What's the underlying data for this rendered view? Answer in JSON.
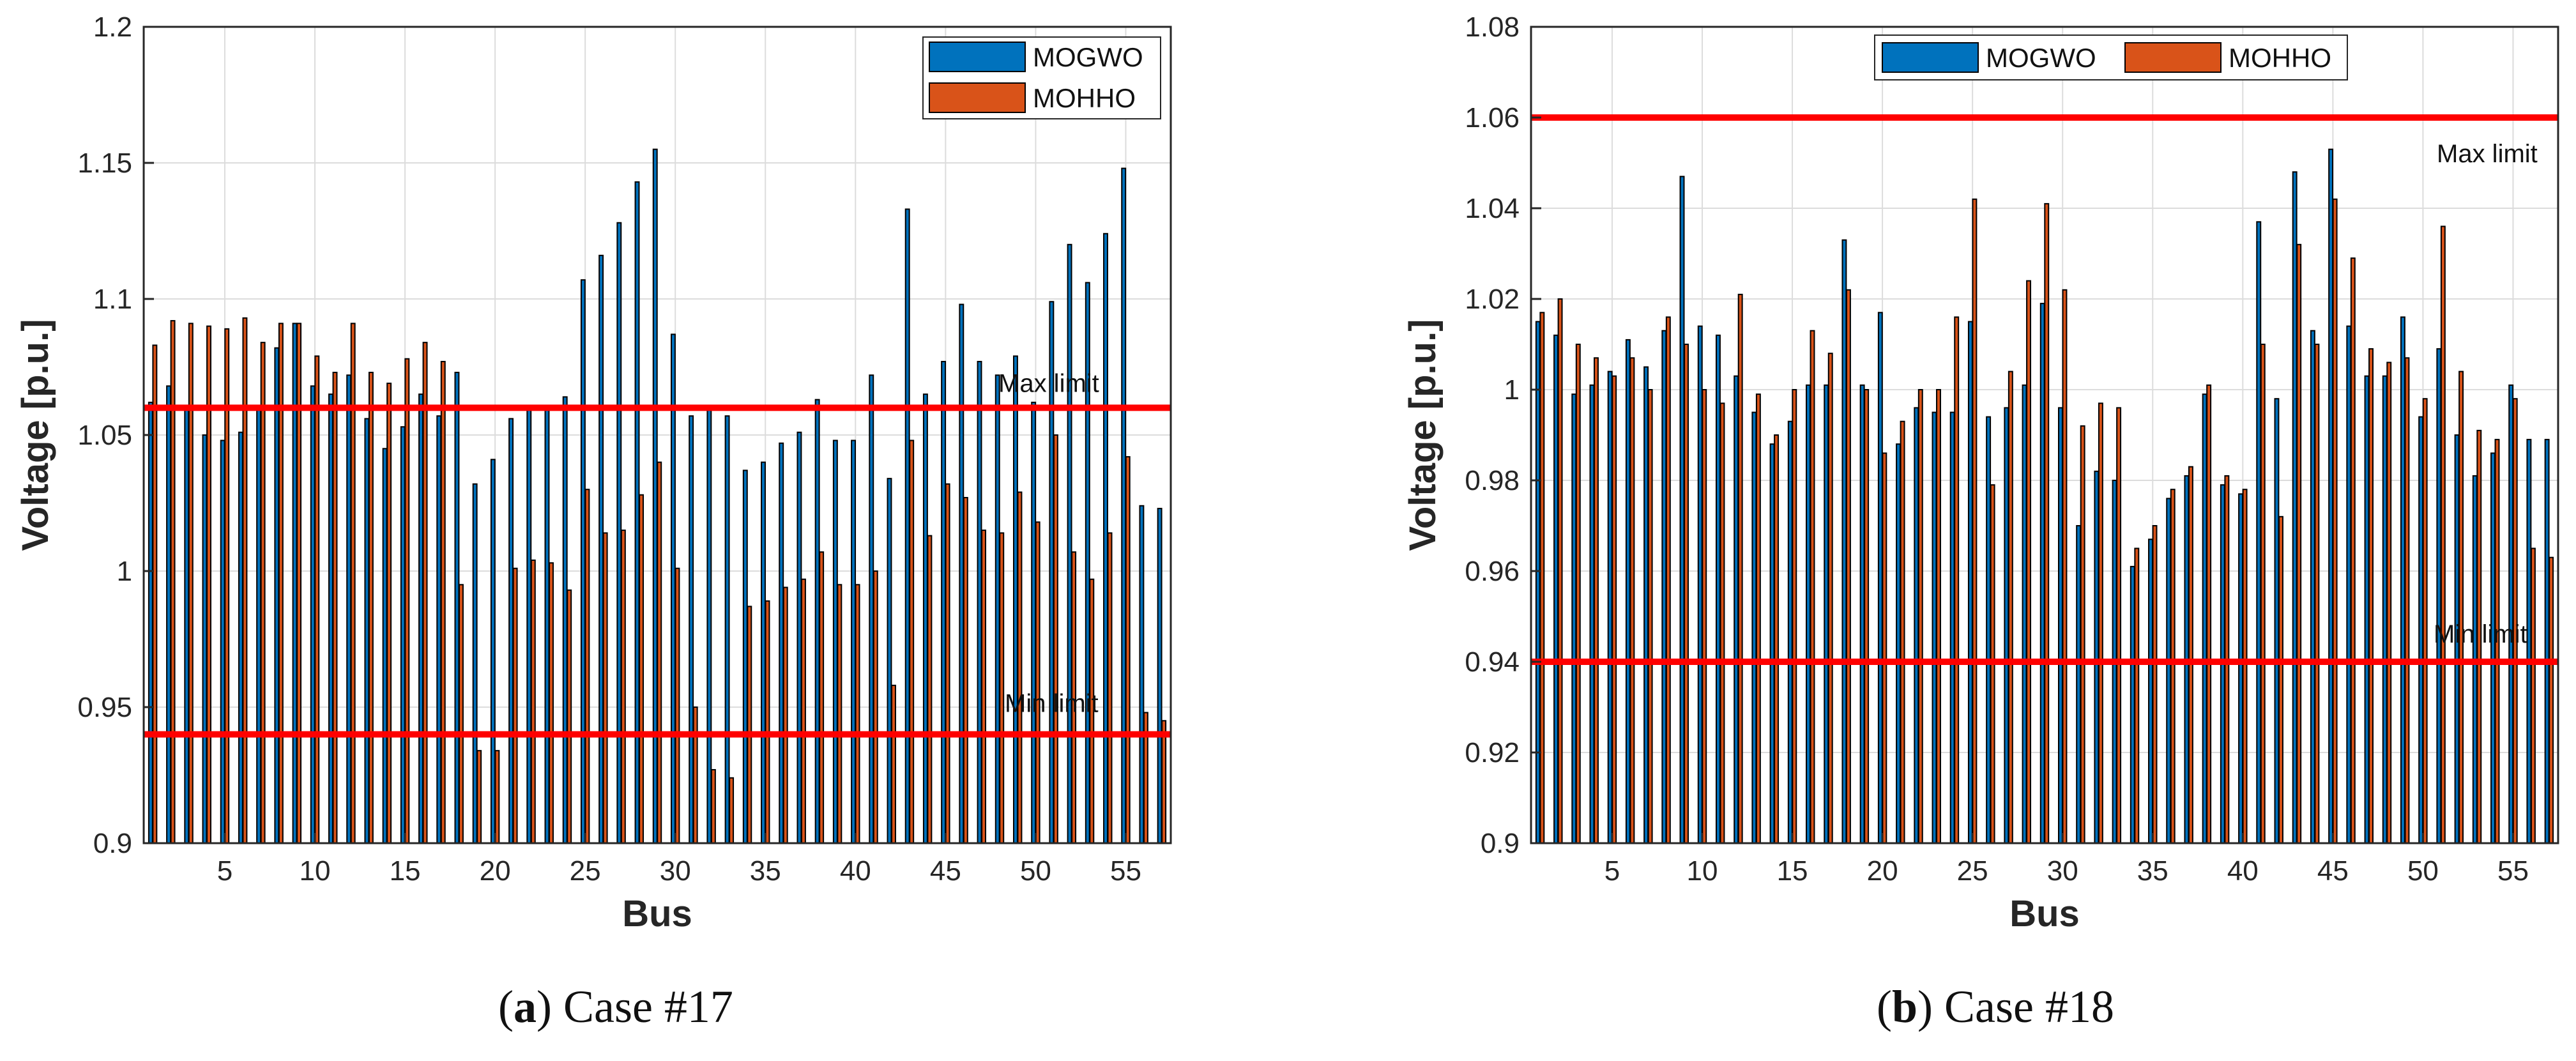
{
  "colors": {
    "mogwo": "#0072BD",
    "mohho": "#D95319",
    "limit_line": "#FF0000",
    "grid": "#DCDCDC",
    "axis": "#262626"
  },
  "panels": [
    {
      "caption": {
        "letter": "a",
        "text": "Case #17"
      },
      "chart_data": {
        "type": "bar",
        "xlabel": "Bus",
        "ylabel": "Voltage [p.u.]",
        "ylim": [
          0.9,
          1.2
        ],
        "yticks": [
          0.9,
          0.95,
          1.0,
          1.05,
          1.1,
          1.15,
          1.2
        ],
        "ytick_labels": [
          "0.9",
          "0.95",
          "1",
          "1.05",
          "1.1",
          "1.15",
          "1.2"
        ],
        "xlim": [
          0.5,
          57.5
        ],
        "xticks": [
          5,
          10,
          15,
          20,
          25,
          30,
          35,
          40,
          45,
          50,
          55
        ],
        "xtick_labels": [
          "5",
          "10",
          "15",
          "20",
          "25",
          "30",
          "35",
          "40",
          "45",
          "50",
          "55"
        ],
        "grid": true,
        "legend": {
          "position": "top-right",
          "layout": "vertical"
        },
        "series": [
          {
            "name": "MOGWO",
            "color": "#0072BD",
            "values": [
              1.062,
              1.068,
              1.06,
              1.05,
              1.048,
              1.051,
              1.06,
              1.082,
              1.091,
              1.068,
              1.065,
              1.072,
              1.056,
              1.045,
              1.053,
              1.065,
              1.057,
              1.073,
              1.032,
              1.041,
              1.056,
              1.06,
              1.06,
              1.064,
              1.107,
              1.116,
              1.128,
              1.143,
              1.155,
              1.087,
              1.057,
              1.06,
              1.057,
              1.037,
              1.04,
              1.047,
              1.051,
              1.063,
              1.048,
              1.048,
              1.072,
              1.034,
              1.133,
              1.065,
              1.077,
              1.098,
              1.077,
              1.072,
              1.079,
              1.062,
              1.099,
              1.12,
              1.106,
              1.124,
              1.148,
              1.024,
              1.023
            ]
          },
          {
            "name": "MOHHO",
            "color": "#D95319",
            "values": [
              1.083,
              1.092,
              1.091,
              1.09,
              1.089,
              1.093,
              1.084,
              1.091,
              1.091,
              1.079,
              1.073,
              1.091,
              1.073,
              1.069,
              1.078,
              1.084,
              1.077,
              0.995,
              0.934,
              0.934,
              1.001,
              1.004,
              1.003,
              0.993,
              1.03,
              1.014,
              1.015,
              1.028,
              1.04,
              1.001,
              0.95,
              0.927,
              0.924,
              0.987,
              0.989,
              0.994,
              0.997,
              1.007,
              0.995,
              0.995,
              1.0,
              0.958,
              1.048,
              1.013,
              1.032,
              1.027,
              1.015,
              1.014,
              1.029,
              1.018,
              1.05,
              1.007,
              0.997,
              1.014,
              1.042,
              0.948,
              0.945
            ]
          }
        ],
        "reference_lines": [
          {
            "name": "max-limit",
            "value": 1.06,
            "label": "Max limit",
            "color": "#FF0000"
          },
          {
            "name": "min-limit",
            "value": 0.94,
            "label": "Min limit",
            "color": "#FF0000"
          }
        ]
      }
    },
    {
      "caption": {
        "letter": "b",
        "text": "Case #18"
      },
      "chart_data": {
        "type": "bar",
        "xlabel": "Bus",
        "ylabel": "Voltage [p.u.]",
        "ylim": [
          0.9,
          1.08
        ],
        "yticks": [
          0.9,
          0.92,
          0.94,
          0.96,
          0.98,
          1.0,
          1.02,
          1.04,
          1.06,
          1.08
        ],
        "ytick_labels": [
          "0.9",
          "0.92",
          "0.94",
          "0.96",
          "0.98",
          "1",
          "1.02",
          "1.04",
          "1.06",
          "1.08"
        ],
        "xlim": [
          0.5,
          57.5
        ],
        "xticks": [
          5,
          10,
          15,
          20,
          25,
          30,
          35,
          40,
          45,
          50,
          55
        ],
        "xtick_labels": [
          "5",
          "10",
          "15",
          "20",
          "25",
          "30",
          "35",
          "40",
          "45",
          "50",
          "55"
        ],
        "grid": true,
        "legend": {
          "position": "top-center",
          "layout": "horizontal"
        },
        "series": [
          {
            "name": "MOGWO",
            "color": "#0072BD",
            "values": [
              1.015,
              1.012,
              0.999,
              1.001,
              1.004,
              1.011,
              1.005,
              1.013,
              1.047,
              1.014,
              1.012,
              1.003,
              0.995,
              0.988,
              0.993,
              1.001,
              1.001,
              1.033,
              1.001,
              1.017,
              0.988,
              0.996,
              0.995,
              0.995,
              1.015,
              0.994,
              0.996,
              1.001,
              1.019,
              0.996,
              0.97,
              0.982,
              0.98,
              0.961,
              0.967,
              0.976,
              0.981,
              0.999,
              0.979,
              0.977,
              1.037,
              0.998,
              1.048,
              1.013,
              1.053,
              1.014,
              1.003,
              1.003,
              1.016,
              0.994,
              1.009,
              0.99,
              0.981,
              0.986,
              1.001,
              0.989,
              0.989
            ]
          },
          {
            "name": "MOHHO",
            "color": "#D95319",
            "values": [
              1.017,
              1.02,
              1.01,
              1.007,
              1.003,
              1.007,
              1.0,
              1.016,
              1.01,
              1.0,
              0.997,
              1.021,
              0.999,
              0.99,
              1.0,
              1.013,
              1.008,
              1.022,
              1.0,
              0.986,
              0.993,
              1.0,
              1.0,
              1.016,
              1.042,
              0.979,
              1.004,
              1.024,
              1.041,
              1.022,
              0.992,
              0.997,
              0.996,
              0.965,
              0.97,
              0.978,
              0.983,
              1.001,
              0.981,
              0.978,
              1.01,
              0.972,
              1.032,
              1.01,
              1.042,
              1.029,
              1.009,
              1.006,
              1.007,
              0.998,
              1.036,
              1.004,
              0.991,
              0.989,
              0.998,
              0.965,
              0.963
            ]
          }
        ],
        "reference_lines": [
          {
            "name": "max-limit",
            "value": 1.06,
            "label": "Max limit",
            "color": "#FF0000"
          },
          {
            "name": "min-limit",
            "value": 0.94,
            "label": "Min limit",
            "color": "#FF0000"
          }
        ]
      }
    }
  ]
}
